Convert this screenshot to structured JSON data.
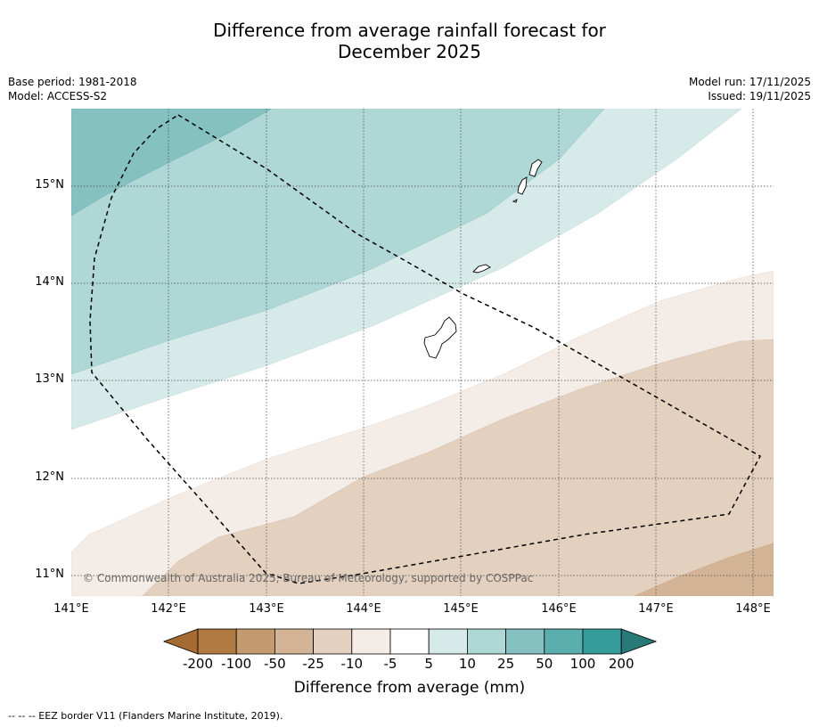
{
  "title_line1": "Difference from average rainfall forecast for",
  "title_line2": "December 2025",
  "meta_left": {
    "base_period": "Base period: 1981-2018",
    "model": "Model: ACCESS-S2"
  },
  "meta_right": {
    "model_run": "Model run: 17/11/2025",
    "issued": "Issued: 19/11/2025"
  },
  "map": {
    "lon_range": [
      141.0,
      148.2
    ],
    "lat_range": [
      10.8,
      15.8
    ],
    "lon_ticks": [
      "141°E",
      "142°E",
      "143°E",
      "144°E",
      "145°E",
      "146°E",
      "147°E",
      "148°E"
    ],
    "lat_ticks": [
      "15°N",
      "14°N",
      "13°N",
      "12°N",
      "11°N"
    ],
    "copyright": "© Commonwealth of Australia 2025, Bureau of Meteorology, supported by COSPPac",
    "islands": [
      "Guam",
      "Rota",
      "Tinian",
      "Saipan"
    ]
  },
  "colorbar": {
    "labels": [
      "-200",
      "-100",
      "-50",
      "-25",
      "-10",
      "-5",
      "5",
      "10",
      "25",
      "50",
      "100",
      "200"
    ],
    "colors": [
      "#a66a35",
      "#b07a40",
      "#c49a6e",
      "#d4b496",
      "#e4d0bf",
      "#f4ece6",
      "#ffffff",
      "#d6eae9",
      "#aed7d6",
      "#85c1c1",
      "#5aaeae",
      "#359b9a",
      "#287a79"
    ],
    "title": "Difference from average (mm)"
  },
  "footer": "--  --  -- EEZ border V11 (Flanders Marine Institute, 2019)."
}
